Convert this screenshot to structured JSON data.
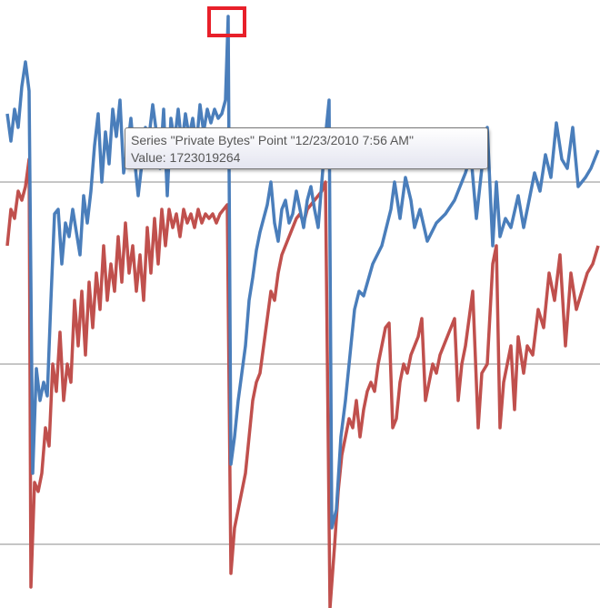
{
  "chart_data": {
    "type": "line",
    "xlim": [
      0,
      660
    ],
    "ylim": [
      0,
      668
    ],
    "yticks": [
      70,
      268,
      468
    ],
    "grid": true,
    "series": [
      {
        "color": "#c0504d",
        "x": [
          8,
          12,
          16,
          20,
          24,
          28,
          32,
          34,
          38,
          42,
          46,
          50,
          54,
          58,
          62,
          66,
          70,
          74,
          78,
          82,
          86,
          90,
          94,
          98,
          102,
          106,
          110,
          114,
          118,
          122,
          126,
          130,
          134,
          138,
          142,
          146,
          150,
          154,
          158,
          162,
          166,
          170,
          174,
          178,
          182,
          186,
          190,
          194,
          198,
          202,
          206,
          210,
          214,
          218,
          222,
          226,
          230,
          234,
          238,
          242,
          250,
          254,
          258,
          262,
          266,
          270,
          274,
          278,
          282,
          286,
          290,
          294,
          298,
          302,
          306,
          310,
          314,
          318,
          322,
          326,
          330,
          334,
          338,
          342,
          346,
          350,
          354,
          358,
          363,
          368,
          372,
          376,
          380,
          384,
          388,
          392,
          396,
          400,
          404,
          408,
          412,
          416,
          420,
          424,
          428,
          432,
          436,
          440,
          444,
          448,
          452,
          456,
          460,
          464,
          468,
          472,
          476,
          480,
          484,
          488,
          492,
          496,
          500,
          504,
          508,
          512,
          516,
          520,
          526,
          530,
          536,
          542,
          546,
          550,
          554,
          558,
          562,
          566,
          570,
          576,
          580,
          586,
          592,
          598,
          604,
          610,
          616,
          622,
          628,
          634,
          640,
          646,
          652,
          658
        ],
        "values": [
          398,
          438,
          428,
          458,
          448,
          463,
          493,
          23,
          138,
          128,
          148,
          198,
          178,
          268,
          238,
          303,
          228,
          268,
          248,
          338,
          288,
          348,
          278,
          358,
          308,
          368,
          328,
          398,
          338,
          378,
          348,
          408,
          358,
          423,
          368,
          398,
          348,
          388,
          338,
          418,
          368,
          428,
          378,
          438,
          398,
          438,
          418,
          433,
          408,
          438,
          423,
          433,
          418,
          438,
          423,
          433,
          428,
          433,
          423,
          433,
          443,
          38,
          88,
          108,
          128,
          148,
          188,
          228,
          248,
          258,
          288,
          318,
          348,
          338,
          368,
          388,
          398,
          408,
          418,
          428,
          433,
          423,
          438,
          443,
          448,
          453,
          458,
          468,
          0,
          68,
          128,
          168,
          188,
          208,
          198,
          228,
          188,
          218,
          238,
          248,
          238,
          268,
          288,
          308,
          313,
          198,
          208,
          248,
          268,
          258,
          278,
          288,
          298,
          318,
          228,
          248,
          268,
          258,
          278,
          288,
          298,
          308,
          318,
          228,
          268,
          288,
          318,
          348,
          198,
          258,
          268,
          378,
          398,
          198,
          248,
          268,
          288,
          218,
          298,
          258,
          288,
          278,
          328,
          308,
          368,
          338,
          388,
          288,
          368,
          328,
          348,
          368,
          378,
          398
        ]
      },
      {
        "color": "#4a7ebb",
        "x": [
          8,
          12,
          16,
          20,
          24,
          28,
          32,
          36,
          40,
          44,
          48,
          52,
          56,
          60,
          64,
          68,
          72,
          76,
          80,
          84,
          88,
          92,
          96,
          100,
          104,
          108,
          112,
          116,
          120,
          124,
          128,
          132,
          136,
          140,
          144,
          148,
          152,
          156,
          160,
          164,
          168,
          172,
          176,
          180,
          184,
          188,
          192,
          196,
          200,
          204,
          208,
          212,
          216,
          220,
          224,
          228,
          232,
          236,
          240,
          244,
          248,
          251,
          254,
          258,
          262,
          266,
          270,
          274,
          278,
          282,
          286,
          290,
          294,
          298,
          302,
          306,
          310,
          314,
          318,
          322,
          326,
          330,
          334,
          338,
          342,
          346,
          350,
          354,
          358,
          362,
          365,
          370,
          375,
          380,
          385,
          390,
          395,
          400,
          410,
          420,
          430,
          434,
          440,
          446,
          452,
          456,
          462,
          470,
          480,
          490,
          500,
          506,
          512,
          518,
          524,
          530,
          536,
          542,
          546,
          550,
          556,
          562,
          570,
          576,
          582,
          588,
          594,
          600,
          606,
          612,
          618,
          624,
          630,
          636,
          644,
          650,
          658
        ],
        "values": [
          543,
          513,
          548,
          528,
          573,
          600,
          568,
          148,
          263,
          228,
          248,
          233,
          338,
          433,
          438,
          378,
          423,
          408,
          438,
          413,
          388,
          453,
          423,
          458,
          508,
          543,
          468,
          523,
          488,
          548,
          518,
          558,
          478,
          503,
          538,
          493,
          453,
          488,
          528,
          518,
          553,
          523,
          483,
          548,
          453,
          538,
          513,
          548,
          508,
          543,
          518,
          538,
          508,
          553,
          523,
          548,
          533,
          548,
          538,
          543,
          558,
          650,
          158,
          188,
          228,
          258,
          288,
          338,
          363,
          393,
          413,
          428,
          443,
          468,
          423,
          403,
          438,
          448,
          423,
          433,
          458,
          438,
          418,
          448,
          463,
          438,
          418,
          468,
          518,
          558,
          88,
          108,
          188,
          228,
          278,
          328,
          348,
          343,
          378,
          398,
          438,
          468,
          428,
          473,
          448,
          418,
          438,
          403,
          423,
          433,
          448,
          463,
          478,
          498,
          428,
          483,
          528,
          398,
          468,
          408,
          428,
          418,
          453,
          418,
          448,
          478,
          458,
          498,
          473,
          533,
          493,
          483,
          528,
          463,
          473,
          483,
          503
        ]
      }
    ]
  },
  "tooltip": {
    "line1": "Series \"Private Bytes\" Point \"12/23/2010 7:56 AM\"",
    "line2": "Value: 1723019264"
  }
}
